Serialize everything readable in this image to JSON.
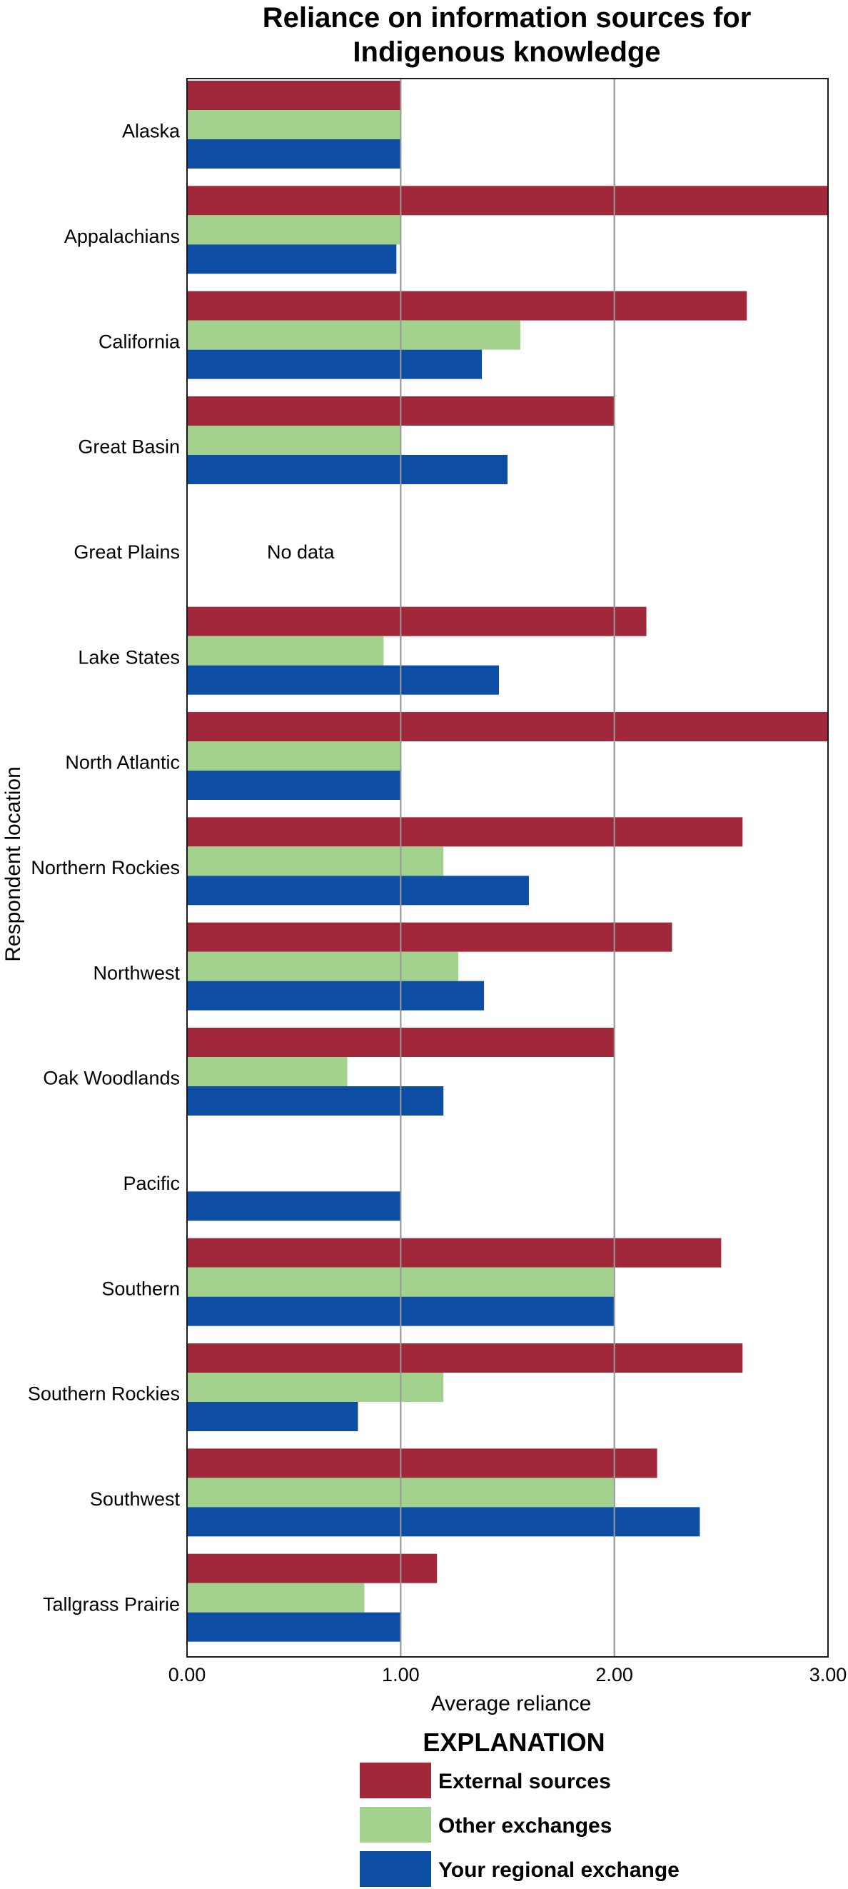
{
  "chart_data": {
    "type": "bar",
    "orientation": "horizontal",
    "title_lines": [
      "Reliance on information sources for",
      "Indigenous knowledge"
    ],
    "xlabel": "Average reliance",
    "ylabel": "Respondent location",
    "xlim": [
      0,
      3
    ],
    "x_ticks": [
      "0.00",
      "1.00",
      "2.00",
      "3.00"
    ],
    "x_tick_values": [
      0,
      1,
      2,
      3
    ],
    "grid": "vertical lines at 1.00 and 2.00",
    "legend_title": "EXPLANATION",
    "legend_position": "bottom",
    "categories": [
      "Alaska",
      "Appalachians",
      "California",
      "Great Basin",
      "Great Plains",
      "Lake States",
      "North Atlantic",
      "Northern Rockies",
      "Northwest",
      "Oak Woodlands",
      "Pacific",
      "Southern",
      "Southern Rockies",
      "Southwest",
      "Tallgrass Prairie"
    ],
    "series": [
      {
        "name": "External sources",
        "color": "#A0283A",
        "values": [
          1.0,
          3.0,
          2.62,
          2.0,
          null,
          2.15,
          3.0,
          2.6,
          2.27,
          2.0,
          null,
          2.5,
          2.6,
          2.2,
          1.17
        ]
      },
      {
        "name": "Other exchanges",
        "color": "#A3D28E",
        "values": [
          1.0,
          1.0,
          1.56,
          1.0,
          null,
          0.92,
          1.0,
          1.2,
          1.27,
          0.75,
          null,
          2.0,
          1.2,
          2.0,
          0.83
        ]
      },
      {
        "name": "Your regional exchange",
        "color": "#0D4EA4",
        "values": [
          1.0,
          0.98,
          1.38,
          1.5,
          null,
          1.46,
          1.0,
          1.6,
          1.39,
          1.2,
          1.0,
          2.0,
          0.8,
          2.4,
          1.0
        ]
      }
    ],
    "annotations": [
      {
        "category": "Great Plains",
        "text": "No data"
      }
    ]
  }
}
